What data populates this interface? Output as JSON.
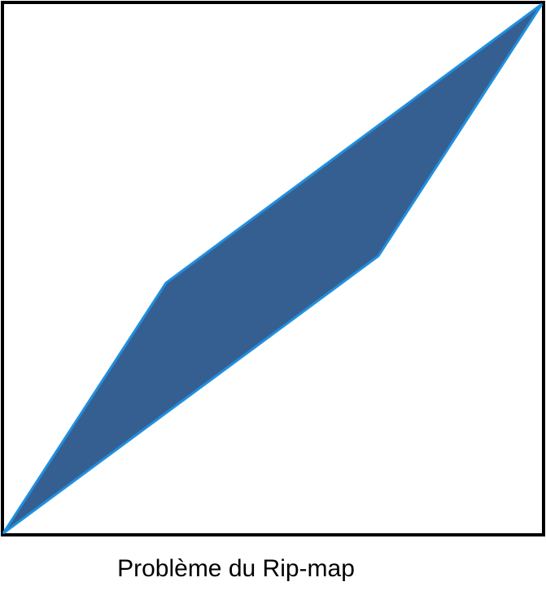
{
  "caption": "Problème du Rip-map",
  "colors": {
    "frame": "#000000",
    "shape_fill": "#365F91",
    "shape_stroke": "#1F8FE0",
    "background": "#ffffff"
  },
  "icons": {
    "shape": "parallelogram-icon"
  }
}
